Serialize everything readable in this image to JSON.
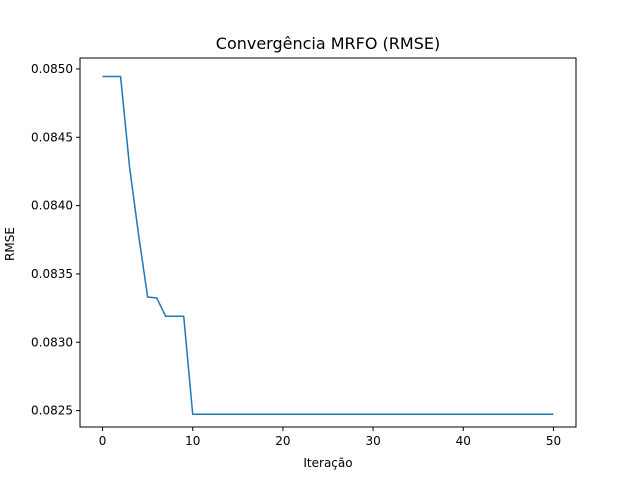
{
  "chart_data": {
    "type": "line",
    "title": "Convergência MRFO (RMSE)",
    "xlabel": "Iteração",
    "ylabel": "RMSE",
    "xlim": [
      -2.5,
      52.5
    ],
    "ylim": [
      0.08238,
      0.08508
    ],
    "xticks": [
      0,
      10,
      20,
      30,
      40,
      50
    ],
    "yticks": [
      0.0825,
      0.083,
      0.0835,
      0.084,
      0.0845,
      0.085
    ],
    "ytick_labels": [
      "0.0825",
      "0.0830",
      "0.0835",
      "0.0840",
      "0.0845",
      "0.0850"
    ],
    "grid": false,
    "series": [
      {
        "color": "#1f77b4",
        "x": [
          0,
          1,
          2,
          3,
          4,
          5,
          6,
          7,
          8,
          9,
          10,
          11,
          12,
          13,
          14,
          15,
          16,
          17,
          18,
          19,
          20,
          21,
          22,
          23,
          24,
          25,
          26,
          27,
          28,
          29,
          30,
          31,
          32,
          33,
          34,
          35,
          36,
          37,
          38,
          39,
          40,
          41,
          42,
          43,
          44,
          45,
          46,
          47,
          48,
          49,
          50
        ],
        "y": [
          0.084945,
          0.084945,
          0.084945,
          0.08428,
          0.083785,
          0.08333,
          0.083325,
          0.08319,
          0.08319,
          0.08319,
          0.082473,
          0.082473,
          0.082473,
          0.082473,
          0.082473,
          0.082473,
          0.082473,
          0.082473,
          0.082473,
          0.082473,
          0.082473,
          0.082473,
          0.082473,
          0.082473,
          0.082473,
          0.082473,
          0.082473,
          0.082473,
          0.082473,
          0.082473,
          0.082473,
          0.082473,
          0.082473,
          0.082473,
          0.082473,
          0.082473,
          0.082473,
          0.082473,
          0.082473,
          0.082473,
          0.082473,
          0.082473,
          0.082473,
          0.082473,
          0.082473,
          0.082473,
          0.082473,
          0.082473,
          0.082473,
          0.082473,
          0.082473
        ]
      }
    ]
  }
}
